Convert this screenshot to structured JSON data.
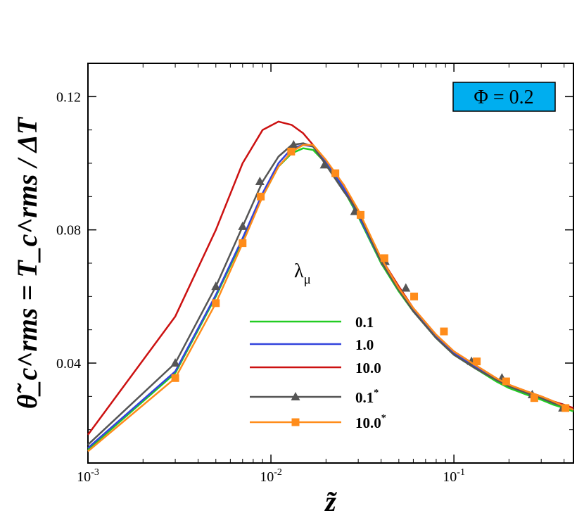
{
  "chart_data": {
    "type": "line",
    "title": "",
    "xlabel": "z̃",
    "ylabel": "θ̃_c^rms = T_c^rms / ΔT",
    "x_scale": "log",
    "xlim": [
      0.001,
      0.45
    ],
    "ylim": [
      0.01,
      0.13
    ],
    "grid": false,
    "x_ticks": [
      {
        "base": "10",
        "exp": "-3"
      },
      {
        "base": "10",
        "exp": "-2"
      },
      {
        "base": "10",
        "exp": "-1"
      }
    ],
    "y_ticks": [
      "0.04",
      "0.08",
      "0.12"
    ],
    "legend_title": "λ",
    "legend_title_sub": "μ",
    "annotation": "Φ = 0.2",
    "series": [
      {
        "name": "0.1",
        "sup": "",
        "color": "#22cc22",
        "marker": "none",
        "x": [
          0.001,
          0.003,
          0.005,
          0.007,
          0.009,
          0.011,
          0.013,
          0.015,
          0.017,
          0.02,
          0.025,
          0.03,
          0.04,
          0.05,
          0.06,
          0.08,
          0.1,
          0.13,
          0.17,
          0.2,
          0.25,
          0.3,
          0.35,
          0.4,
          0.45
        ],
        "y": [
          0.014,
          0.037,
          0.06,
          0.077,
          0.09,
          0.099,
          0.103,
          0.1045,
          0.104,
          0.1,
          0.092,
          0.084,
          0.07,
          0.0615,
          0.0555,
          0.0475,
          0.0425,
          0.0385,
          0.0345,
          0.0325,
          0.0305,
          0.029,
          0.0275,
          0.0265,
          0.0255
        ]
      },
      {
        "name": "1.0",
        "sup": "",
        "color": "#3344dd",
        "marker": "none",
        "x": [
          0.001,
          0.003,
          0.005,
          0.007,
          0.009,
          0.011,
          0.013,
          0.015,
          0.017,
          0.02,
          0.025,
          0.03,
          0.04,
          0.05,
          0.06,
          0.08,
          0.1,
          0.13,
          0.17,
          0.2,
          0.25,
          0.3,
          0.35,
          0.4,
          0.45
        ],
        "y": [
          0.0145,
          0.0375,
          0.0605,
          0.0775,
          0.091,
          0.1,
          0.1045,
          0.1055,
          0.105,
          0.1005,
          0.0925,
          0.0845,
          0.0705,
          0.062,
          0.056,
          0.048,
          0.043,
          0.039,
          0.035,
          0.033,
          0.031,
          0.0295,
          0.028,
          0.027,
          0.026
        ]
      },
      {
        "name": "10.0",
        "sup": "",
        "color": "#cc1111",
        "marker": "none",
        "x": [
          0.001,
          0.003,
          0.005,
          0.007,
          0.009,
          0.011,
          0.013,
          0.015,
          0.017,
          0.02,
          0.025,
          0.03,
          0.04,
          0.05,
          0.06,
          0.08,
          0.1,
          0.13,
          0.17,
          0.2,
          0.25,
          0.3,
          0.35,
          0.4,
          0.45
        ],
        "y": [
          0.0185,
          0.054,
          0.08,
          0.1,
          0.11,
          0.1125,
          0.1115,
          0.109,
          0.1055,
          0.1005,
          0.0935,
          0.0855,
          0.0715,
          0.063,
          0.0565,
          0.0485,
          0.0435,
          0.0395,
          0.0355,
          0.0335,
          0.0315,
          0.03,
          0.0285,
          0.0275,
          0.0265
        ]
      },
      {
        "name": "0.1",
        "sup": "*",
        "color": "#555555",
        "marker": "triangle",
        "x": [
          0.001,
          0.003,
          0.005,
          0.007,
          0.009,
          0.011,
          0.013,
          0.015,
          0.017,
          0.02,
          0.025,
          0.03,
          0.04,
          0.05,
          0.06,
          0.08,
          0.1,
          0.13,
          0.17,
          0.2,
          0.25,
          0.3,
          0.35,
          0.4,
          0.45
        ],
        "y": [
          0.0155,
          0.04,
          0.063,
          0.081,
          0.0945,
          0.102,
          0.1055,
          0.106,
          0.105,
          0.0995,
          0.0915,
          0.0855,
          0.0705,
          0.062,
          0.0555,
          0.0475,
          0.0425,
          0.0385,
          0.035,
          0.033,
          0.031,
          0.0295,
          0.028,
          0.027,
          0.026
        ],
        "marker_x": [
          0.003,
          0.005,
          0.007,
          0.0087,
          0.0133,
          0.0196,
          0.0287,
          0.0421,
          0.0546,
          0.1248,
          0.183,
          0.268,
          0.393
        ],
        "marker_y": [
          0.04,
          0.063,
          0.081,
          0.0945,
          0.1055,
          0.0995,
          0.0855,
          0.0705,
          0.0625,
          0.0405,
          0.0355,
          0.0305,
          0.0265
        ]
      },
      {
        "name": "10.0",
        "sup": "*",
        "color": "#ff8c1a",
        "marker": "square",
        "x": [
          0.001,
          0.003,
          0.005,
          0.007,
          0.009,
          0.011,
          0.013,
          0.015,
          0.017,
          0.02,
          0.025,
          0.03,
          0.04,
          0.05,
          0.06,
          0.08,
          0.1,
          0.13,
          0.17,
          0.2,
          0.25,
          0.3,
          0.35,
          0.4,
          0.45
        ],
        "y": [
          0.0135,
          0.0355,
          0.058,
          0.076,
          0.09,
          0.099,
          0.1035,
          0.1055,
          0.1055,
          0.101,
          0.0935,
          0.086,
          0.0715,
          0.0625,
          0.0565,
          0.0485,
          0.0435,
          0.0395,
          0.0355,
          0.0335,
          0.0315,
          0.03,
          0.0285,
          0.027,
          0.026
        ],
        "marker_x": [
          0.003,
          0.005,
          0.007,
          0.0088,
          0.0129,
          0.0225,
          0.0309,
          0.0417,
          0.0606,
          0.0882,
          0.1333,
          0.193,
          0.275,
          0.407
        ],
        "marker_y": [
          0.0355,
          0.058,
          0.076,
          0.09,
          0.1035,
          0.097,
          0.0845,
          0.0715,
          0.06,
          0.0495,
          0.0405,
          0.0345,
          0.0295,
          0.0265
        ]
      }
    ]
  }
}
